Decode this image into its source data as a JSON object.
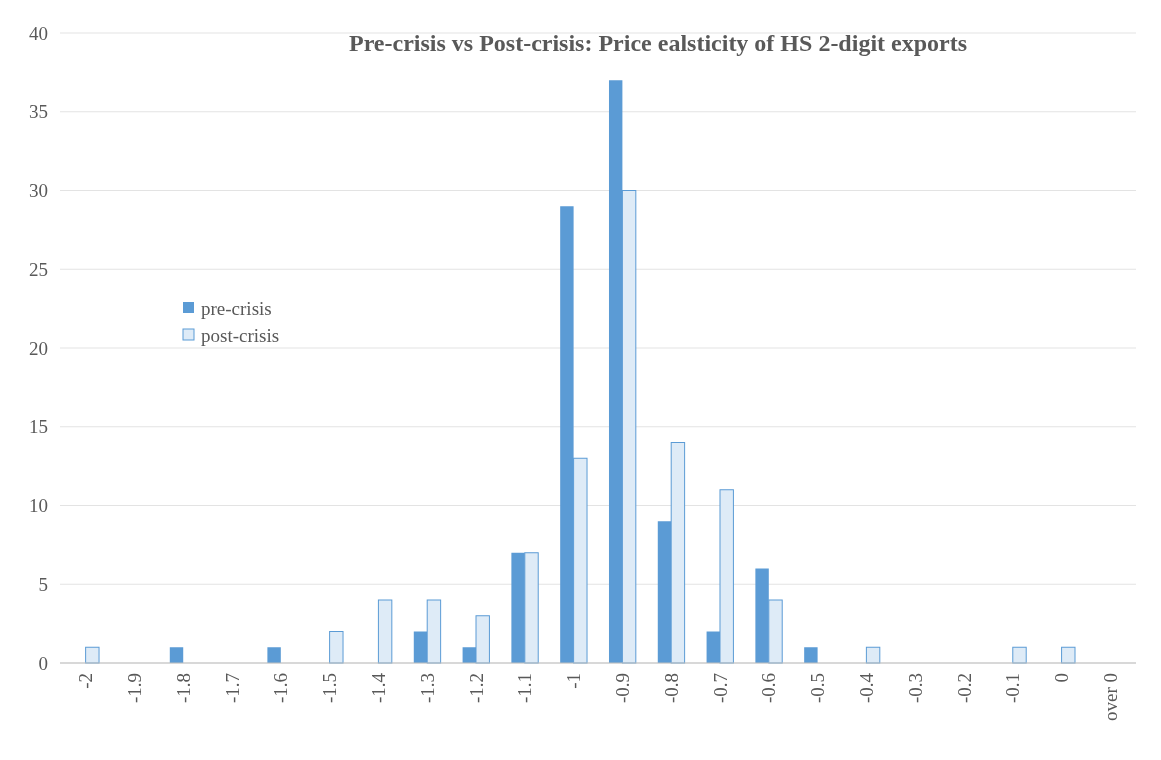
{
  "chart_data": {
    "type": "bar",
    "title": "Pre-crisis vs Post-crisis: Price ealsticity of HS 2-digit exports",
    "categories": [
      "-2",
      "-1.9",
      "-1.8",
      "-1.7",
      "-1.6",
      "-1.5",
      "-1.4",
      "-1.3",
      "-1.2",
      "-1.1",
      "-1",
      "-0.9",
      "-0.8",
      "-0.7",
      "-0.6",
      "-0.5",
      "-0.4",
      "-0.3",
      "-0.2",
      "-0.1",
      "0",
      "over 0"
    ],
    "series": [
      {
        "name": "pre-crisis",
        "color": "#5b9bd5",
        "values": [
          0,
          0,
          1,
          0,
          1,
          0,
          0,
          2,
          1,
          7,
          29,
          37,
          9,
          2,
          6,
          1,
          0,
          0,
          0,
          0,
          0,
          0
        ]
      },
      {
        "name": "post-crisis",
        "color": "#deebf7",
        "values": [
          1,
          0,
          0,
          0,
          0,
          2,
          4,
          4,
          3,
          7,
          13,
          30,
          14,
          11,
          4,
          0,
          1,
          0,
          0,
          1,
          1,
          0
        ]
      }
    ],
    "ylim": [
      0,
      40
    ],
    "yticks": [
      0,
      5,
      10,
      15,
      20,
      25,
      30,
      35,
      40
    ],
    "grid": "y",
    "legend": "left"
  }
}
